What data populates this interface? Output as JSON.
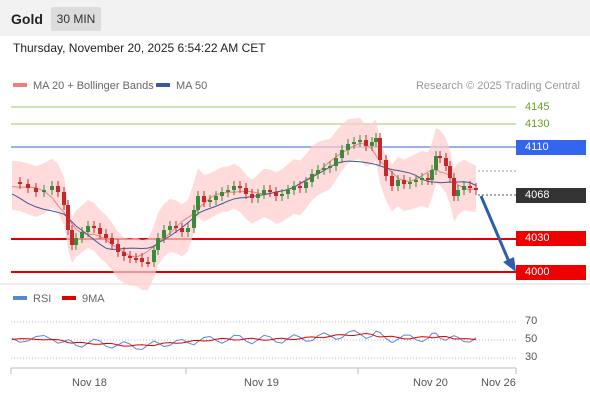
{
  "header": {
    "symbol": "Gold",
    "timeframe": "30 MIN"
  },
  "timestamp": "Thursday, November 20, 2025 6:54:22 AM CET",
  "legend": {
    "ma20_label": "MA 20 + Bollinger Bands",
    "ma50_label": "MA 50",
    "rsi_label": "RSI",
    "ma9_label": "9MA"
  },
  "credit": "Research © 2025 Trading Central",
  "levels": {
    "l4145": "4145",
    "l4130": "4130",
    "l4110": "4110",
    "l4068": "4068",
    "l4030": "4030",
    "l4000": "4000"
  },
  "rsi_axis": {
    "t70": "70",
    "t50": "50",
    "t30": "30"
  },
  "x_axis": {
    "d1": "Nov 18",
    "d2": "Nov 19",
    "d3": "Nov 20",
    "d4": "Nov 26"
  },
  "colors": {
    "up": "#3a8a3a",
    "down": "#c62828",
    "resistance_green": "#99cc66",
    "blue": "#3366cc",
    "red": "#e00000",
    "dark": "#333333",
    "band": "#ffcccc",
    "ma20": "#f08080",
    "ma50": "#3a5a9a",
    "rsi": "#5b86d6",
    "rsi_ma": "#e00000"
  }
}
